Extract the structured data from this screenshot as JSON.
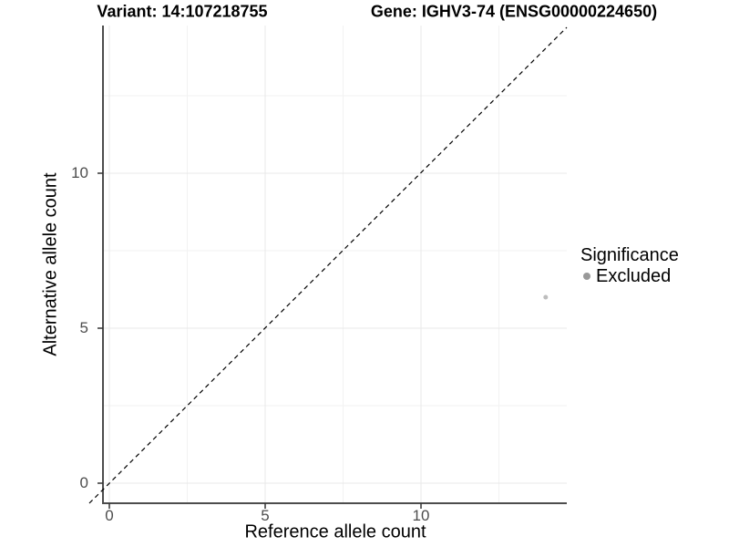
{
  "titles": {
    "variant": "Variant: 14:107218755",
    "gene": "Gene: IGHV3-74 (ENSG00000224650)"
  },
  "axes": {
    "x": {
      "label": "Reference allele count",
      "ticks": [
        "0",
        "5",
        "10"
      ]
    },
    "y": {
      "label": "Alternative allele count",
      "ticks": [
        "0",
        "5",
        "10"
      ]
    }
  },
  "legend": {
    "title": "Significance",
    "items": [
      {
        "label": "Excluded",
        "color": "#999999"
      }
    ]
  },
  "colors": {
    "background": "#ffffff",
    "grid_major": "#e8e8e8",
    "grid_minor": "#f2f2f2",
    "axis_line": "#4d4d4d",
    "tick_label": "#4d4d4d",
    "identity_line": "#000000"
  },
  "chart_data": {
    "type": "scatter",
    "title_left": "Variant: 14:107218755",
    "title_right": "Gene: IGHV3-74 (ENSG00000224650)",
    "xlabel": "Reference allele count",
    "ylabel": "Alternative allele count",
    "x_ticks": [
      0,
      5,
      10
    ],
    "y_ticks": [
      0,
      5,
      10
    ],
    "xlim": [
      -0.7,
      14.7
    ],
    "ylim": [
      -0.7,
      14.7
    ],
    "grid": "major (0,5,10) and minor (2.5,7.5,12.5) light gray on white",
    "legend_position": "right",
    "reference_line": {
      "type": "identity y=x",
      "style": "dashed",
      "color": "#000000"
    },
    "series": [
      {
        "name": "Excluded",
        "color": "#bdbdbd",
        "points": [
          {
            "x": 14,
            "y": 6
          }
        ]
      }
    ]
  }
}
